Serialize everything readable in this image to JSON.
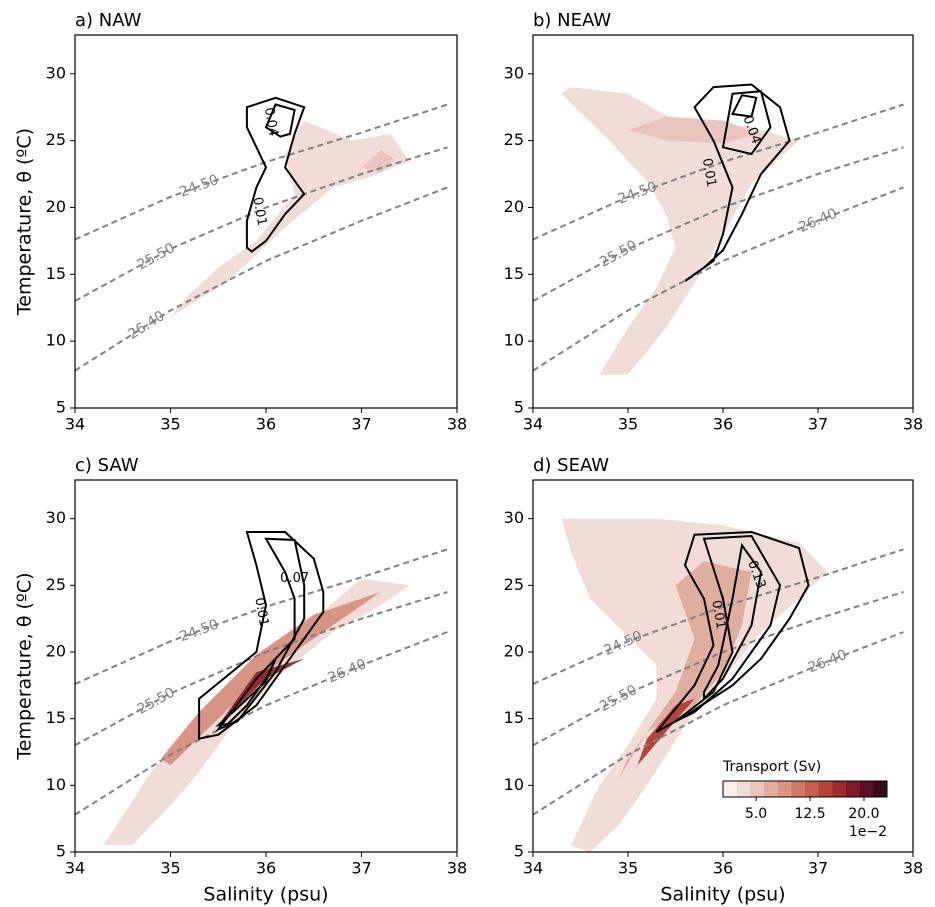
{
  "chart_data": [
    {
      "type": "contour",
      "title": "a) NAW",
      "ylabel": "Temperature, θ (ºC)",
      "xlim": [
        34,
        38
      ],
      "ylim": [
        5,
        32.9
      ],
      "xticks": [
        34,
        35,
        36,
        37,
        38
      ],
      "yticks": [
        5,
        10,
        15,
        20,
        25,
        30
      ],
      "isopycnals": [
        {
          "label": "24.50",
          "x": [
            34,
            35,
            36,
            37,
            37.9
          ],
          "y": [
            17.6,
            20.8,
            23.4,
            25.6,
            27.7
          ]
        },
        {
          "label": "25.50",
          "x": [
            34,
            35,
            36,
            37,
            37.9
          ],
          "y": [
            13.0,
            16.9,
            20.0,
            22.5,
            24.5
          ]
        },
        {
          "label": "26.40",
          "x": [
            34,
            35,
            36,
            37,
            37.9
          ],
          "y": [
            7.8,
            12.3,
            16.0,
            19.0,
            21.5
          ]
        }
      ],
      "filled": [
        {
          "color": "#f1dcd7",
          "x": [
            35.0,
            35.6,
            36.2,
            36.7,
            37.1,
            37.5,
            37.3,
            36.9,
            36.4,
            36.2,
            36.3,
            35.9,
            35.5,
            35.2
          ],
          "y": [
            11.8,
            14.5,
            18.5,
            21.5,
            22.3,
            23.5,
            25.5,
            25.0,
            26.5,
            24,
            21,
            17.5,
            15.5,
            13.5
          ]
        },
        {
          "color": "#e8c5bd",
          "x": [
            37.0,
            37.2,
            37.35,
            37.2
          ],
          "y": [
            23.0,
            22.6,
            23.6,
            24.3
          ]
        }
      ],
      "contours": [
        {
          "x": [
            35.8,
            35.8,
            35.9,
            36.0,
            35.8,
            35.8,
            36.1,
            36.4,
            36.3,
            36.2,
            36.4,
            36.2,
            36.0,
            35.85
          ],
          "y": [
            17,
            19,
            21.5,
            23,
            26,
            27.5,
            28.2,
            27.5,
            25.5,
            23,
            21,
            19.5,
            17.5,
            16.7
          ]
        },
        {
          "x": [
            36.0,
            36.1,
            36.3,
            36.25,
            36.15
          ],
          "y": [
            26,
            27.7,
            27.3,
            25.5,
            25.3
          ]
        }
      ],
      "contour_labels": [
        0.04,
        0.01
      ]
    },
    {
      "type": "contour",
      "title": "b) NEAW",
      "xlim": [
        34,
        38
      ],
      "ylim": [
        5,
        32.9
      ],
      "xticks": [
        34,
        35,
        36,
        37,
        38
      ],
      "yticks": [
        5,
        10,
        15,
        20,
        25,
        30
      ],
      "isopycnals": [
        {
          "label": "24.50",
          "x": [
            34,
            35,
            36,
            37,
            37.9
          ],
          "y": [
            17.6,
            20.8,
            23.4,
            25.6,
            27.7
          ]
        },
        {
          "label": "25.50",
          "x": [
            34,
            35,
            36,
            37,
            37.9
          ],
          "y": [
            13.0,
            16.9,
            20.0,
            22.5,
            24.5
          ]
        },
        {
          "label": "26.40",
          "x": [
            34,
            35,
            36,
            37,
            37.9
          ],
          "y": [
            7.8,
            12.3,
            16.0,
            19.0,
            21.5
          ]
        }
      ],
      "filled": [
        {
          "color": "#f1dcd7",
          "x": [
            34.4,
            35.0,
            35.5,
            36.3,
            36.8,
            36.3,
            36.0,
            35.8,
            35.4,
            35.0,
            34.7,
            35.0,
            35.3,
            35.5,
            35.4,
            35.2,
            34.8,
            34.3
          ],
          "y": [
            29,
            28.5,
            26.5,
            26,
            25,
            21.8,
            18,
            15.5,
            11,
            7.5,
            7.5,
            11,
            14,
            17,
            19.5,
            22,
            25,
            28.5
          ]
        },
        {
          "color": "#e8c5bd",
          "x": [
            35.0,
            35.4,
            36.0,
            36.4,
            36.0,
            35.4
          ],
          "y": [
            25.8,
            26.8,
            26.5,
            25.5,
            24.8,
            25
          ]
        }
      ],
      "contours": [
        {
          "x": [
            35.6,
            35.9,
            36.0,
            36.1,
            35.9,
            35.7,
            35.9,
            36.3,
            36.6,
            36.7,
            36.4,
            36.2,
            36.0,
            35.8
          ],
          "y": [
            14.5,
            16,
            18,
            21.5,
            25,
            27.5,
            29,
            29.2,
            27.5,
            25,
            22.5,
            19.5,
            16.8,
            15.5
          ]
        },
        {
          "x": [
            36.0,
            36.1,
            36.4,
            36.5,
            36.3
          ],
          "y": [
            24.5,
            28.5,
            28.7,
            26,
            24
          ]
        },
        {
          "x": [
            36.1,
            36.2,
            36.35,
            36.3
          ],
          "y": [
            27,
            28.4,
            28.2,
            26.8
          ]
        }
      ],
      "contour_labels": [
        0.01,
        0.04
      ]
    },
    {
      "type": "contour",
      "title": "c) SAW",
      "ylabel": "Temperature, θ (ºC)",
      "xlabel": "Salinity (psu)",
      "xlim": [
        34,
        38
      ],
      "ylim": [
        5,
        32.9
      ],
      "xticks": [
        34,
        35,
        36,
        37,
        38
      ],
      "yticks": [
        5,
        10,
        15,
        20,
        25,
        30
      ],
      "isopycnals": [
        {
          "label": "24.50",
          "x": [
            34,
            35,
            36,
            37,
            37.9
          ],
          "y": [
            17.6,
            20.8,
            23.4,
            25.6,
            27.7
          ]
        },
        {
          "label": "25.50",
          "x": [
            34,
            35,
            36,
            37,
            37.9
          ],
          "y": [
            13.0,
            16.9,
            20.0,
            22.5,
            24.5
          ]
        },
        {
          "label": "26.40",
          "x": [
            34,
            35,
            36,
            37,
            37.9
          ],
          "y": [
            7.8,
            12.3,
            16.0,
            19.0,
            21.5
          ]
        }
      ],
      "filled": [
        {
          "color": "#f1dcd7",
          "x": [
            35.3,
            35.6,
            36.1,
            36.7,
            37.2,
            37.5,
            37.0,
            36.5,
            35.9,
            35.3,
            34.8,
            34.3,
            34.6,
            35.0
          ],
          "y": [
            11,
            14,
            18,
            21.5,
            23.5,
            25,
            25.5,
            22.5,
            19,
            15,
            11,
            5.5,
            5.5,
            8.5
          ]
        },
        {
          "color": "#d89583",
          "x": [
            35.0,
            35.5,
            36.0,
            36.6,
            37.2,
            36.5,
            35.9,
            35.3,
            34.9
          ],
          "y": [
            11.5,
            15,
            18.5,
            21.5,
            24.5,
            22.8,
            19.8,
            15.5,
            12
          ]
        },
        {
          "color": "#9c2b2c",
          "x": [
            35.5,
            36.0,
            36.4,
            35.9,
            35.6
          ],
          "y": [
            14.5,
            18,
            19.5,
            18.5,
            15.5
          ]
        }
      ],
      "contours": [
        {
          "x": [
            35.3,
            35.3,
            35.9,
            36.0,
            35.9,
            35.8,
            36.2,
            36.5,
            36.6,
            36.6,
            36.2,
            35.9,
            35.5
          ],
          "y": [
            13.5,
            16.5,
            20,
            23.5,
            26.5,
            29,
            29,
            27,
            24.5,
            23,
            19,
            16,
            13.8
          ]
        },
        {
          "x": [
            35.5,
            35.9,
            36.3,
            36.3,
            36.2,
            36.0,
            36.3,
            36.4,
            36.4,
            36.1,
            35.7
          ],
          "y": [
            14.2,
            18,
            21,
            24,
            26,
            28.5,
            28.4,
            25,
            22.5,
            18.5,
            14.8
          ]
        },
        {
          "x": [
            35.5,
            35.7,
            36.0,
            36.1,
            36.0,
            35.8,
            35.6
          ],
          "y": [
            14.5,
            15.8,
            17.8,
            19.5,
            18,
            16,
            14.6
          ]
        }
      ],
      "contour_labels": [
        0.07,
        0.01
      ]
    },
    {
      "type": "contour",
      "title": "d) SEAW",
      "xlabel": "Salinity (psu)",
      "xlim": [
        34,
        38
      ],
      "ylim": [
        5,
        32.9
      ],
      "xticks": [
        34,
        35,
        36,
        37,
        38
      ],
      "yticks": [
        5,
        10,
        15,
        20,
        25,
        30
      ],
      "isopycnals": [
        {
          "label": "24.50",
          "x": [
            34,
            35,
            36,
            37,
            37.9
          ],
          "y": [
            17.6,
            20.8,
            23.4,
            25.6,
            27.7
          ]
        },
        {
          "label": "25.50",
          "x": [
            34,
            35,
            36,
            37,
            37.9
          ],
          "y": [
            13.0,
            16.9,
            20.0,
            22.5,
            24.5
          ]
        },
        {
          "label": "26.40",
          "x": [
            34,
            35,
            36,
            37,
            37.9
          ],
          "y": [
            7.8,
            12.3,
            16.0,
            19.0,
            21.5
          ]
        }
      ],
      "filled": [
        {
          "color": "#f1dcd7",
          "x": [
            34.3,
            35.3,
            36.0,
            36.8,
            37.1,
            36.8,
            36.4,
            36.0,
            35.6,
            35.2,
            34.9,
            34.6,
            34.4,
            34.7,
            35.0,
            35.3,
            35.3,
            34.6,
            34.4
          ],
          "y": [
            30,
            30,
            29.5,
            28.2,
            26,
            24,
            21.5,
            18,
            14.5,
            10,
            7,
            5,
            5.5,
            10,
            13,
            16.5,
            19,
            24,
            27.5
          ]
        },
        {
          "color": "#e0ae9f",
          "x": [
            35.2,
            35.7,
            36.0,
            36.2,
            36.3,
            35.8,
            35.5,
            35.7,
            35.5,
            35.0,
            34.9
          ],
          "y": [
            14,
            16,
            18.5,
            22,
            26,
            26.8,
            25,
            21,
            17,
            12,
            10.5
          ]
        },
        {
          "color": "#b24438",
          "x": [
            35.1,
            35.4,
            35.7,
            35.5,
            35.2
          ],
          "y": [
            11.5,
            14,
            16.5,
            16,
            13.5
          ]
        }
      ],
      "contours": [
        {
          "x": [
            35.3,
            35.7,
            35.9,
            35.8,
            35.6,
            35.7,
            36.3,
            36.8,
            36.9,
            36.7,
            36.4,
            36.1,
            35.6
          ],
          "y": [
            14,
            17.5,
            20.5,
            24,
            26.5,
            28.8,
            29,
            27.8,
            25,
            22.5,
            19.5,
            17.5,
            15.2
          ]
        },
        {
          "x": [
            35.5,
            35.9,
            36.1,
            36.0,
            35.8,
            36.3,
            36.6,
            36.5,
            36.1,
            35.7
          ],
          "y": [
            14.8,
            17,
            20,
            24,
            28.5,
            28.7,
            25,
            22,
            18,
            15.5
          ]
        },
        {
          "x": [
            35.8,
            36.0,
            36.3,
            36.4,
            36.2,
            36.1,
            35.95,
            35.8
          ],
          "y": [
            16.5,
            18,
            22,
            26,
            28,
            24,
            19,
            17
          ]
        }
      ],
      "contour_labels": [
        0.13,
        0.01
      ],
      "colorbar": {
        "label": "Transport (Sv)",
        "offset": "1e−2",
        "clim": [
          0.4,
          23.2
        ],
        "colors": [
          "#fbf0ee",
          "#f1dcd7",
          "#e8c5bd",
          "#e0ae9f",
          "#d89583",
          "#cf7a66",
          "#c35f4b",
          "#b24438",
          "#9c2b2c",
          "#7e1a2a",
          "#5c0f24",
          "#3a0a1a"
        ],
        "ticks": [
          {
            "value": 5,
            "label": "5.0"
          },
          12.5,
          {
            "value": 20,
            "label": "20.0"
          }
        ]
      }
    }
  ]
}
